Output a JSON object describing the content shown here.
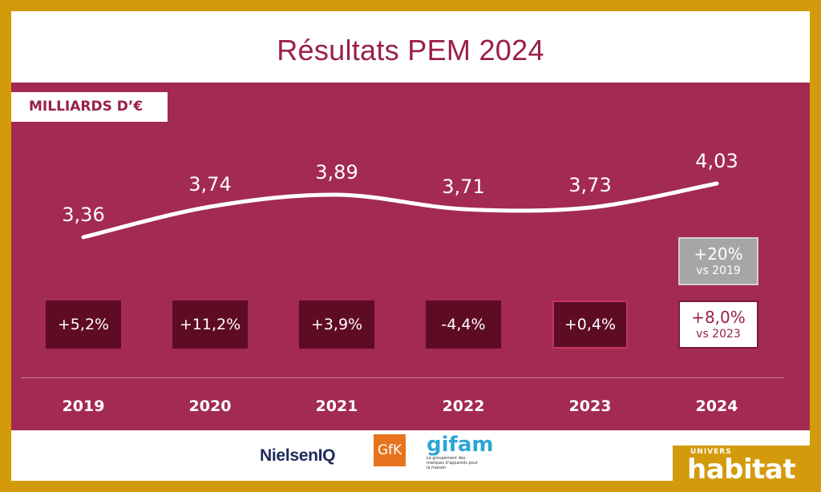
{
  "title": "Résultats PEM 2024",
  "unit_label": "MILLIARDS D’€",
  "chart_data": {
    "type": "line",
    "title": "Résultats PEM 2024",
    "ylabel": "MILLIARDS D’€",
    "xlabel": "",
    "categories": [
      "2019",
      "2020",
      "2021",
      "2022",
      "2023",
      "2024"
    ],
    "values": [
      3.36,
      3.74,
      3.89,
      3.71,
      3.73,
      4.03
    ],
    "value_labels": [
      "3,36",
      "3,74",
      "3,89",
      "3,71",
      "3,73",
      "4,03"
    ],
    "growth_labels": [
      "+5,2%",
      "+11,2%",
      "+3,9%",
      "-4,4%",
      "+0,4%"
    ],
    "comparisons": [
      {
        "value": "+20%",
        "label": "vs 2019",
        "color": "#a6a6a6"
      },
      {
        "value": "+8,0%",
        "label": "vs 2023",
        "color": "#ffffff"
      }
    ],
    "line_color": "#ffffff",
    "background_color": "#a32a52",
    "grid": false
  },
  "logos": {
    "nielseniq": "NielsenIQ",
    "gfk": "GfK",
    "gifam": "gifam",
    "gifam_tagline": "Le groupement des marques d'appareils pour la maison"
  },
  "brand": {
    "univers": "UNIVERS",
    "name": "habitat",
    "background": "#d39b0b"
  }
}
